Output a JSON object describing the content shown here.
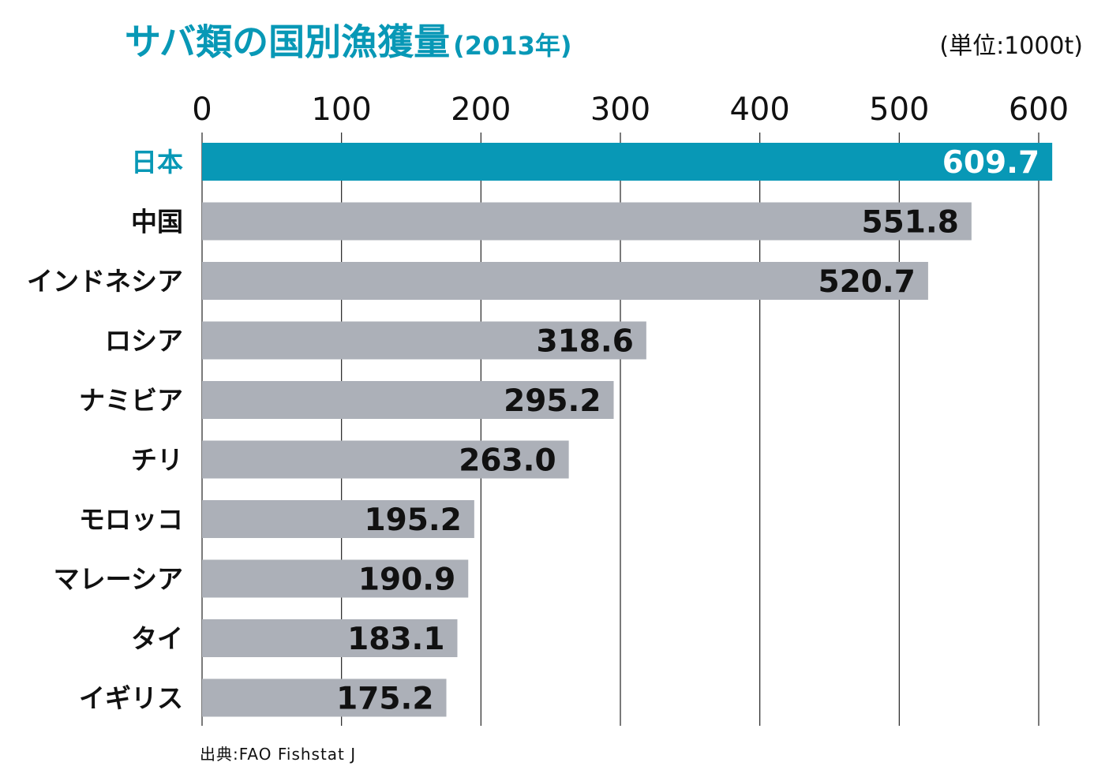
{
  "title": {
    "main": "サバ類の国別漁獲量",
    "sub": "(2013年)"
  },
  "unit_label": "(単位:1000t)",
  "source": "出典:FAO Fishstat J",
  "colors": {
    "highlight": "#0898b6",
    "bar": "#acb0b8",
    "grid": "#222222",
    "highlight_text": "#ffffff",
    "value_text": "#111111"
  },
  "chart_data": {
    "type": "bar",
    "orientation": "horizontal",
    "title": "サバ類の国別漁獲量(2013年)",
    "xlabel": "",
    "ylabel": "",
    "xlim": [
      0,
      600
    ],
    "x_ticks": [
      0,
      100,
      200,
      300,
      400,
      500,
      600
    ],
    "x_tick_labels": [
      "0",
      "100",
      "200",
      "300",
      "400",
      "500",
      "600"
    ],
    "x_axis_position": "top",
    "grid": true,
    "categories": [
      "日本",
      "中国",
      "インドネシア",
      "ロシア",
      "ナミビア",
      "チリ",
      "モロッコ",
      "マレーシア",
      "タイ",
      "イギリス"
    ],
    "values": [
      609.7,
      551.8,
      520.7,
      318.6,
      295.2,
      263.0,
      195.2,
      190.9,
      183.1,
      175.2
    ],
    "value_labels": [
      "609.7",
      "551.8",
      "520.7",
      "318.6",
      "295.2",
      "263.0",
      "195.2",
      "190.9",
      "183.1",
      "175.2"
    ],
    "highlight_index": 0
  }
}
